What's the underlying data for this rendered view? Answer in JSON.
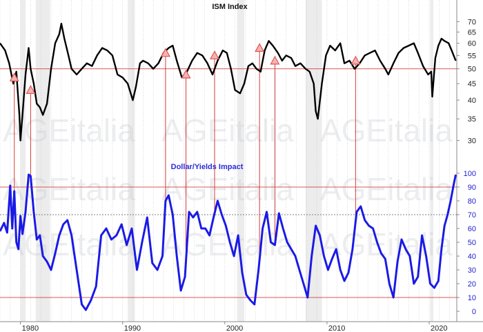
{
  "chart_data": [
    {
      "type": "line",
      "title": "ISM Index",
      "y_scale": "log",
      "ylim": [
        27,
        74
      ],
      "y_ticks": [
        30,
        35,
        40,
        45,
        50,
        55,
        60,
        65,
        70
      ],
      "x_ticks": [
        "1980",
        "1990",
        "2000",
        "2010",
        "2020"
      ],
      "xlim": [
        1978,
        2022.7
      ],
      "series": [
        {
          "color": "#000000",
          "points": [
            [
              1978.0,
              60
            ],
            [
              1978.5,
              57
            ],
            [
              1978.9,
              52
            ],
            [
              1979.3,
              45
            ],
            [
              1979.6,
              49
            ],
            [
              1979.9,
              36
            ],
            [
              1980.0,
              30
            ],
            [
              1980.2,
              36
            ],
            [
              1980.5,
              48
            ],
            [
              1980.8,
              58
            ],
            [
              1981.0,
              50
            ],
            [
              1981.3,
              45
            ],
            [
              1981.6,
              39
            ],
            [
              1981.9,
              38
            ],
            [
              1982.2,
              36
            ],
            [
              1982.6,
              39
            ],
            [
              1983.0,
              50
            ],
            [
              1983.4,
              60
            ],
            [
              1983.8,
              64
            ],
            [
              1984.0,
              69
            ],
            [
              1984.3,
              62
            ],
            [
              1984.7,
              55
            ],
            [
              1985.0,
              50
            ],
            [
              1985.5,
              48
            ],
            [
              1986.0,
              50
            ],
            [
              1986.5,
              52
            ],
            [
              1987.0,
              51
            ],
            [
              1987.5,
              55
            ],
            [
              1988.0,
              58
            ],
            [
              1988.5,
              57
            ],
            [
              1989.0,
              55
            ],
            [
              1989.5,
              48
            ],
            [
              1990.0,
              47
            ],
            [
              1990.5,
              45
            ],
            [
              1991.0,
              40
            ],
            [
              1991.3,
              44
            ],
            [
              1991.7,
              52
            ],
            [
              1992.0,
              53
            ],
            [
              1992.5,
              52
            ],
            [
              1993.0,
              50
            ],
            [
              1993.5,
              52
            ],
            [
              1994.0,
              56
            ],
            [
              1994.5,
              58
            ],
            [
              1994.9,
              59
            ],
            [
              1995.3,
              53
            ],
            [
              1995.8,
              47
            ],
            [
              1996.3,
              49
            ],
            [
              1996.8,
              53
            ],
            [
              1997.3,
              56
            ],
            [
              1997.8,
              55
            ],
            [
              1998.3,
              52
            ],
            [
              1998.8,
              48
            ],
            [
              1999.3,
              53
            ],
            [
              1999.8,
              57
            ],
            [
              2000.2,
              56
            ],
            [
              2000.6,
              50
            ],
            [
              2001.0,
              43
            ],
            [
              2001.5,
              42
            ],
            [
              2001.9,
              45
            ],
            [
              2002.3,
              51
            ],
            [
              2002.7,
              52
            ],
            [
              2003.1,
              50
            ],
            [
              2003.5,
              49
            ],
            [
              2003.9,
              57
            ],
            [
              2004.3,
              61
            ],
            [
              2004.7,
              59
            ],
            [
              2005.2,
              56
            ],
            [
              2005.6,
              53
            ],
            [
              2006.0,
              55
            ],
            [
              2006.5,
              54
            ],
            [
              2006.9,
              51
            ],
            [
              2007.4,
              52
            ],
            [
              2007.9,
              50
            ],
            [
              2008.3,
              49
            ],
            [
              2008.7,
              45
            ],
            [
              2008.9,
              37
            ],
            [
              2009.1,
              35
            ],
            [
              2009.5,
              45
            ],
            [
              2009.9,
              55
            ],
            [
              2010.3,
              59
            ],
            [
              2010.8,
              57
            ],
            [
              2011.3,
              60
            ],
            [
              2011.7,
              52
            ],
            [
              2012.2,
              53
            ],
            [
              2012.7,
              50
            ],
            [
              2013.2,
              52
            ],
            [
              2013.7,
              55
            ],
            [
              2014.2,
              56
            ],
            [
              2014.7,
              57
            ],
            [
              2015.2,
              53
            ],
            [
              2015.7,
              50
            ],
            [
              2016.0,
              48
            ],
            [
              2016.5,
              52
            ],
            [
              2017.0,
              56
            ],
            [
              2017.5,
              58
            ],
            [
              2018.0,
              59
            ],
            [
              2018.5,
              60
            ],
            [
              2018.9,
              56
            ],
            [
              2019.4,
              51
            ],
            [
              2019.9,
              48
            ],
            [
              2020.2,
              49
            ],
            [
              2020.3,
              41
            ],
            [
              2020.6,
              54
            ],
            [
              2020.9,
              59
            ],
            [
              2021.2,
              62
            ],
            [
              2021.5,
              61
            ],
            [
              2021.9,
              60
            ],
            [
              2022.2,
              57
            ],
            [
              2022.6,
              53
            ]
          ]
        }
      ],
      "reference_lines": [
        50
      ],
      "markers": [
        {
          "x": 1979.4,
          "y": 47
        },
        {
          "x": 1981.0,
          "y": 43
        },
        {
          "x": 1994.2,
          "y": 56
        },
        {
          "x": 1996.2,
          "y": 48
        },
        {
          "x": 1999.0,
          "y": 55
        },
        {
          "x": 2003.4,
          "y": 58
        },
        {
          "x": 2004.9,
          "y": 53
        },
        {
          "x": 2012.8,
          "y": 53
        }
      ],
      "marker_color": "#e05555",
      "grid": "vertical"
    },
    {
      "type": "line",
      "title": "Dollar/Yields Impact",
      "ylim": [
        -3,
        103
      ],
      "y_ticks": [
        0,
        10,
        20,
        30,
        40,
        50,
        60,
        70,
        80,
        90,
        100
      ],
      "series": [
        {
          "color": "#1a1ae6",
          "points": [
            [
              1978.0,
              58
            ],
            [
              1978.4,
              64
            ],
            [
              1978.7,
              57
            ],
            [
              1979.0,
              91
            ],
            [
              1979.2,
              60
            ],
            [
              1979.4,
              87
            ],
            [
              1979.6,
              50
            ],
            [
              1979.8,
              45
            ],
            [
              1980.0,
              69
            ],
            [
              1980.2,
              56
            ],
            [
              1980.5,
              72
            ],
            [
              1980.8,
              99
            ],
            [
              1981.0,
              98
            ],
            [
              1981.3,
              72
            ],
            [
              1981.6,
              52
            ],
            [
              1981.9,
              55
            ],
            [
              1982.2,
              40
            ],
            [
              1982.6,
              36
            ],
            [
              1983.0,
              30
            ],
            [
              1983.4,
              42
            ],
            [
              1983.8,
              55
            ],
            [
              1984.2,
              63
            ],
            [
              1984.6,
              66
            ],
            [
              1985.0,
              55
            ],
            [
              1985.5,
              30
            ],
            [
              1986.0,
              5
            ],
            [
              1986.4,
              1
            ],
            [
              1986.9,
              8
            ],
            [
              1987.4,
              18
            ],
            [
              1987.9,
              55
            ],
            [
              1988.4,
              60
            ],
            [
              1988.9,
              52
            ],
            [
              1989.4,
              55
            ],
            [
              1989.9,
              63
            ],
            [
              1990.4,
              48
            ],
            [
              1990.9,
              60
            ],
            [
              1991.4,
              30
            ],
            [
              1991.9,
              50
            ],
            [
              1992.4,
              68
            ],
            [
              1992.9,
              35
            ],
            [
              1993.4,
              30
            ],
            [
              1993.9,
              40
            ],
            [
              1994.2,
              80
            ],
            [
              1994.5,
              84
            ],
            [
              1994.9,
              70
            ],
            [
              1995.3,
              40
            ],
            [
              1995.7,
              15
            ],
            [
              1996.1,
              25
            ],
            [
              1996.5,
              72
            ],
            [
              1996.9,
              68
            ],
            [
              1997.3,
              72
            ],
            [
              1997.7,
              60
            ],
            [
              1998.1,
              60
            ],
            [
              1998.5,
              55
            ],
            [
              1998.9,
              68
            ],
            [
              1999.3,
              80
            ],
            [
              1999.7,
              70
            ],
            [
              2000.1,
              62
            ],
            [
              2000.5,
              50
            ],
            [
              2000.9,
              40
            ],
            [
              2001.3,
              55
            ],
            [
              2001.7,
              28
            ],
            [
              2002.1,
              12
            ],
            [
              2002.5,
              8
            ],
            [
              2002.9,
              5
            ],
            [
              2003.3,
              30
            ],
            [
              2003.7,
              60
            ],
            [
              2004.1,
              72
            ],
            [
              2004.5,
              50
            ],
            [
              2004.9,
              48
            ],
            [
              2005.3,
              71
            ],
            [
              2005.7,
              60
            ],
            [
              2006.1,
              50
            ],
            [
              2006.5,
              45
            ],
            [
              2006.9,
              40
            ],
            [
              2007.3,
              30
            ],
            [
              2007.7,
              20
            ],
            [
              2008.1,
              10
            ],
            [
              2008.5,
              40
            ],
            [
              2008.9,
              62
            ],
            [
              2009.3,
              55
            ],
            [
              2009.7,
              40
            ],
            [
              2010.1,
              30
            ],
            [
              2010.5,
              38
            ],
            [
              2010.9,
              45
            ],
            [
              2011.3,
              30
            ],
            [
              2011.7,
              22
            ],
            [
              2012.1,
              28
            ],
            [
              2012.5,
              45
            ],
            [
              2012.9,
              72
            ],
            [
              2013.3,
              76
            ],
            [
              2013.7,
              66
            ],
            [
              2014.1,
              62
            ],
            [
              2014.5,
              60
            ],
            [
              2014.9,
              50
            ],
            [
              2015.3,
              42
            ],
            [
              2015.7,
              38
            ],
            [
              2016.1,
              20
            ],
            [
              2016.5,
              10
            ],
            [
              2016.9,
              36
            ],
            [
              2017.3,
              52
            ],
            [
              2017.7,
              45
            ],
            [
              2018.1,
              40
            ],
            [
              2018.5,
              20
            ],
            [
              2018.9,
              25
            ],
            [
              2019.3,
              55
            ],
            [
              2019.7,
              40
            ],
            [
              2020.1,
              20
            ],
            [
              2020.5,
              17
            ],
            [
              2020.9,
              22
            ],
            [
              2021.2,
              45
            ],
            [
              2021.5,
              62
            ],
            [
              2021.8,
              70
            ],
            [
              2022.1,
              80
            ],
            [
              2022.4,
              92
            ],
            [
              2022.6,
              99
            ]
          ]
        }
      ],
      "reference_lines": [
        10,
        90
      ],
      "dotted_reference_lines": [
        70
      ]
    }
  ],
  "connectors": {
    "color": "#d63b3b",
    "x": [
      1979.4,
      1981.0,
      1994.2,
      1996.2,
      1999.0,
      2003.4,
      2004.9,
      2012.8
    ]
  },
  "recession_bands": [
    [
      1980.0,
      1980.5
    ],
    [
      1981.5,
      1982.9
    ],
    [
      1990.5,
      1991.2
    ],
    [
      2001.2,
      2001.9
    ],
    [
      2007.9,
      2009.5
    ],
    [
      2020.1,
      2020.4
    ]
  ],
  "watermark": "AGEitalia"
}
